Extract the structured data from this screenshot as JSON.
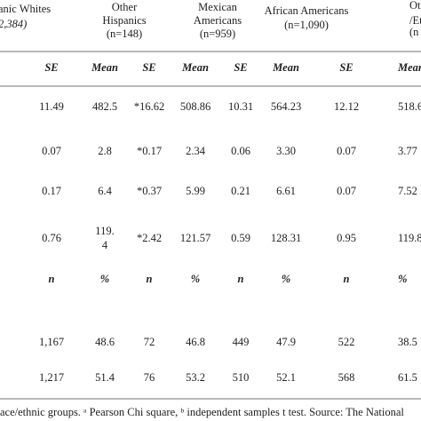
{
  "table": {
    "groups": [
      {
        "lines": [
          "anic Whites",
          "2,384)"
        ]
      },
      {
        "lines": [
          "Other",
          "Hispanics",
          "(n=148)"
        ]
      },
      {
        "lines": [
          "Mexican",
          "Americans",
          "(n=959)"
        ]
      },
      {
        "lines": [
          "African Americans",
          "(n=1,090)"
        ]
      },
      {
        "lines": [
          "Ot",
          "/Et",
          "(n"
        ]
      }
    ],
    "subheaders": [
      "SE",
      "Mean",
      "SE",
      "Mean",
      "SE",
      "Mean",
      "SE",
      "Mean"
    ],
    "rows": [
      [
        "11.49",
        "482.5",
        "*16.62",
        "508.86",
        "10.31",
        "564.23",
        "12.12",
        "518.6"
      ],
      [
        "0.07",
        "2.8",
        "*0.17",
        "2.34",
        "0.06",
        "3.30",
        "0.07",
        "3.77"
      ],
      [
        "0.17",
        "6.4",
        "*0.37",
        "5.99",
        "0.21",
        "6.61",
        "0.07",
        "7.52"
      ],
      [
        "0.76",
        [
          "119.",
          "4"
        ],
        "*2.42",
        "121.57",
        "0.59",
        "128.31",
        "0.95",
        "119.8"
      ],
      [
        "n",
        "%",
        "n",
        "%",
        "n",
        "%",
        "n",
        "%"
      ],
      [
        "1,167",
        "48.6",
        "72",
        "46.8",
        "449",
        "47.9",
        "522",
        "38.5"
      ],
      [
        "1,217",
        "51.4",
        "76",
        "53.2",
        "510",
        "52.1",
        "568",
        "61.5"
      ]
    ],
    "footer": "ace/ethnic groups. ᵃ Pearson Chi square, ᵇ independent samples t test. Source: The National"
  }
}
